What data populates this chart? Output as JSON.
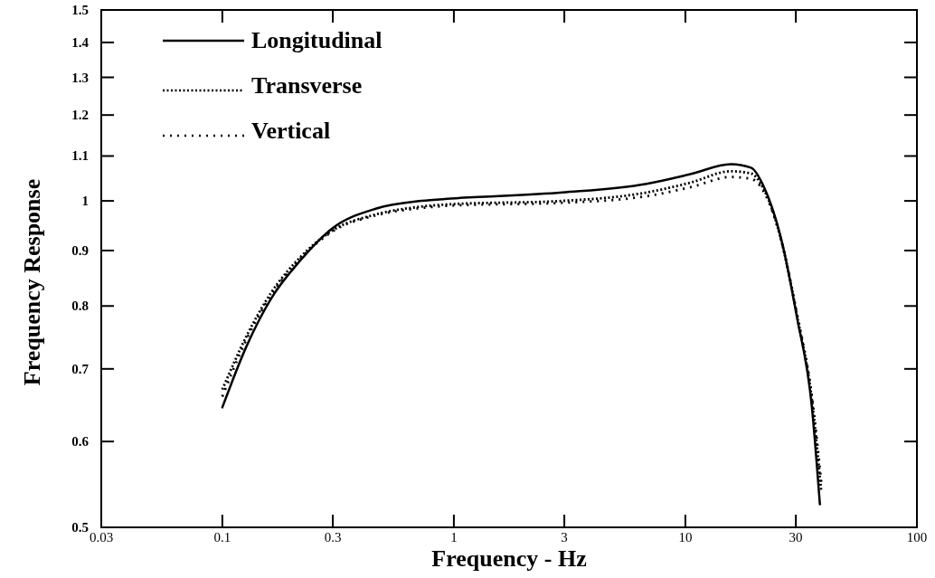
{
  "chart_data": {
    "type": "line",
    "xlabel": "Frequency - Hz",
    "ylabel": "Frequency Response",
    "log": "xy",
    "xlim": [
      0.03,
      100
    ],
    "ylim": [
      0.5,
      1.5
    ],
    "xticks": [
      0.03,
      0.1,
      0.3,
      1,
      3,
      10,
      30,
      100
    ],
    "yticks": [
      0.5,
      0.6,
      0.7,
      0.8,
      0.9,
      1,
      1.1,
      1.2,
      1.3,
      1.4,
      1.5
    ],
    "grid": false,
    "legend": "top left",
    "series": [
      {
        "name": "Longitudinal",
        "color": "#000000",
        "line_style": "solid",
        "x": [
          0.1,
          0.127,
          0.162,
          0.218,
          0.296,
          0.463,
          0.724,
          0.97,
          2.94,
          6.8,
          10.6,
          15.7,
          19.2,
          21.8,
          26.1,
          30.3,
          35.2,
          38.1
        ],
        "values": [
          0.645,
          0.734,
          0.812,
          0.882,
          0.942,
          0.984,
          1.0,
          1.005,
          1.018,
          1.037,
          1.059,
          1.081,
          1.073,
          1.031,
          0.917,
          0.782,
          0.645,
          0.525
        ]
      },
      {
        "name": "Transverse",
        "color": "#000000",
        "line_style": "dotted",
        "x": [
          0.1,
          0.127,
          0.162,
          0.218,
          0.296,
          0.463,
          0.724,
          0.97,
          2.94,
          6.8,
          10.6,
          15.7,
          19.2,
          21.8,
          26.1,
          30.3,
          35.2,
          38.6
        ],
        "values": [
          0.67,
          0.75,
          0.822,
          0.888,
          0.938,
          0.972,
          0.988,
          0.993,
          1.0,
          1.018,
          1.04,
          1.065,
          1.06,
          1.025,
          0.915,
          0.785,
          0.655,
          0.54
        ]
      },
      {
        "name": "Vertical",
        "color": "#000000",
        "line_style": "dotted",
        "x": [
          0.1,
          0.127,
          0.162,
          0.218,
          0.296,
          0.463,
          0.724,
          0.97,
          2.94,
          6.8,
          10.6,
          15.7,
          19.2,
          21.8,
          26.1,
          30.3,
          35.2,
          38.8
        ],
        "values": [
          0.66,
          0.745,
          0.818,
          0.885,
          0.936,
          0.97,
          0.985,
          0.99,
          0.996,
          1.01,
          1.03,
          1.052,
          1.048,
          1.02,
          0.915,
          0.788,
          0.66,
          0.545
        ]
      }
    ]
  }
}
